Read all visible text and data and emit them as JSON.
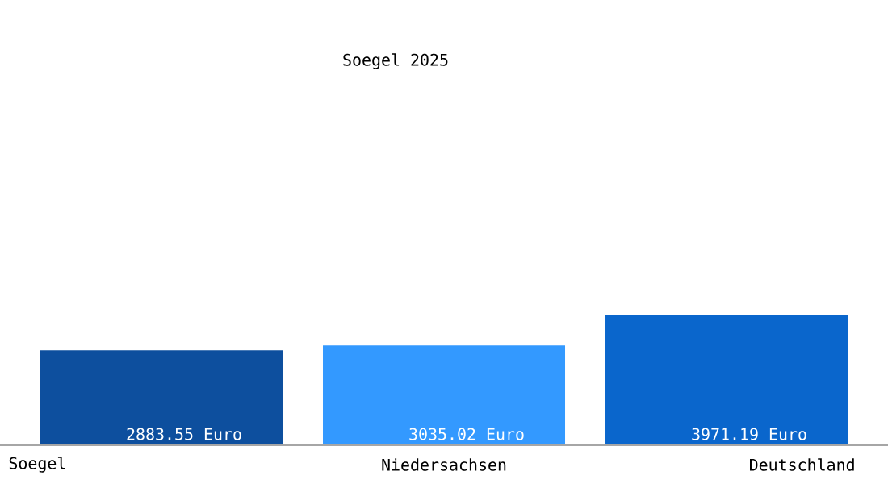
{
  "chart_data": {
    "type": "bar",
    "title": "Soegel 2025",
    "categories": [
      "Soegel",
      "Niedersachsen",
      "Deutschland"
    ],
    "values": [
      2883.55,
      3035.02,
      3971.19
    ],
    "value_labels": [
      "2883.55 Euro",
      "3035.02 Euro",
      "3971.19 Euro"
    ],
    "colors": [
      "#0d4f9e",
      "#3399ff",
      "#0a66cc"
    ]
  }
}
